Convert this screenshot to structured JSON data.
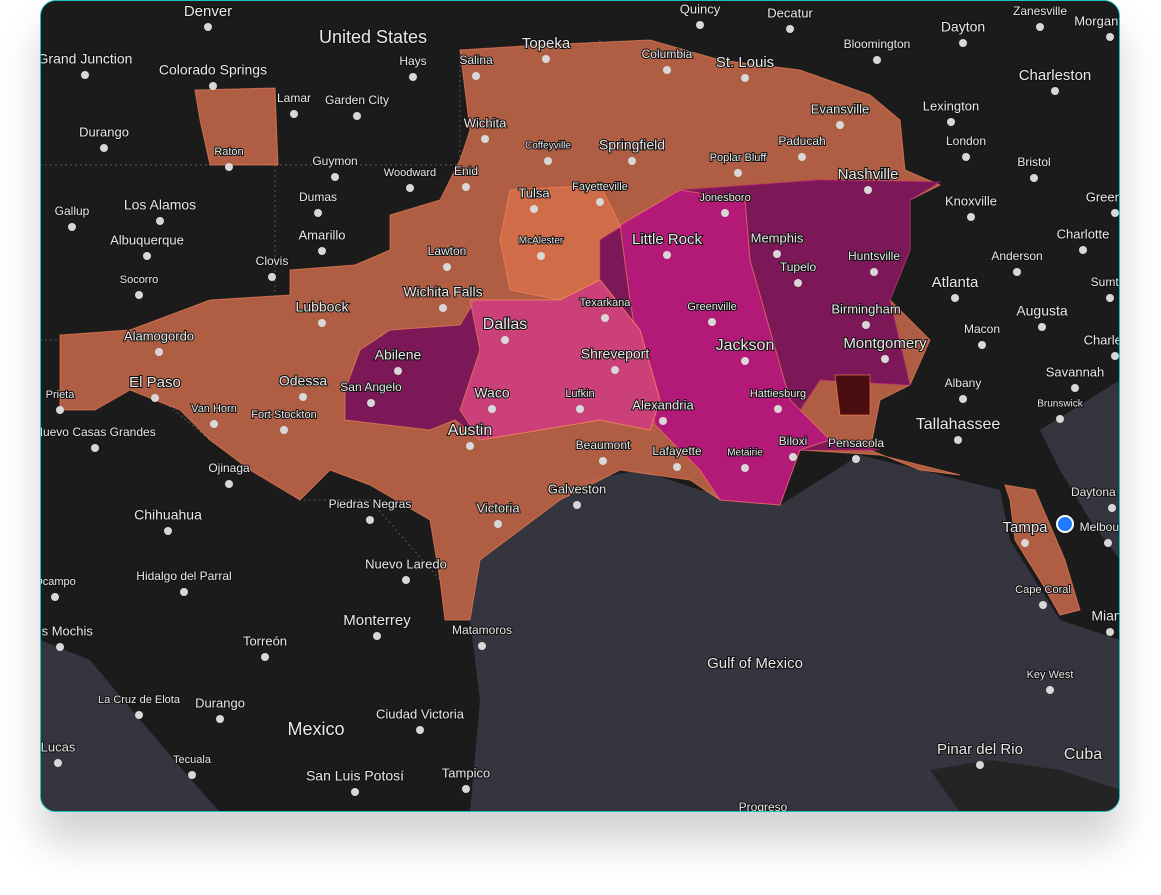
{
  "map": {
    "labels": [
      "Denver",
      "United States",
      "Topeka",
      "Quincy",
      "Decatur",
      "Dayton",
      "Zanesville",
      "Morgantown",
      "Grand Junction",
      "Colorado Springs",
      "Hays",
      "Salina",
      "Columbia",
      "St. Louis",
      "Bloomington",
      "Charleston",
      "Lamar",
      "Garden City",
      "Evansville",
      "Lexington",
      "Durango",
      "Wichita",
      "Raton",
      "Coffeyville",
      "Springfield",
      "Poplar Bluff",
      "Paducah",
      "London",
      "Guymon",
      "Woodward",
      "Enid",
      "Nashville",
      "Bristol",
      "Dumas",
      "Tulsa",
      "Fayetteville",
      "Jonesboro",
      "Knoxville",
      "Greenville",
      "Gallup",
      "Los Alamos",
      "Amarillo",
      "McAlester",
      "Little Rock",
      "Memphis",
      "Charlotte",
      "Albuquerque",
      "Lawton",
      "Clovis",
      "Tupelo",
      "Huntsville",
      "Anderson",
      "Socorro",
      "Atlanta",
      "Sumter",
      "Wichita Falls",
      "Texarkana",
      "Greenville",
      "Birmingham",
      "Lubbock",
      "Augusta",
      "Alamogordo",
      "Dallas",
      "Macon",
      "Charleston",
      "Abilene",
      "Shreveport",
      "Jackson",
      "Montgomery",
      "Savannah",
      "El Paso",
      "Odessa",
      "San Angelo",
      "Hattiesburg",
      "Albany",
      "Prieta",
      "Waco",
      "Lufkin",
      "Brunswick",
      "Van Horn",
      "Fort Stockton",
      "Alexandria",
      "Tallahassee",
      "Nuevo Casas Grandes",
      "Austin",
      "Biloxi",
      "Pensacola",
      "Beaumont",
      "Lafayette",
      "Metairie",
      "Ojinaga",
      "Galveston",
      "Daytona Beach",
      "Piedras Negras",
      "Chihuahua",
      "Victoria",
      "Tampa",
      "Melbourne",
      "Nuevo Laredo",
      "Hidalgo del Parral",
      "Ocampo",
      "Cape Coral",
      "Monterrey",
      "Matamoros",
      "Miami",
      "Los Mochis",
      "Torreón",
      "Gulf of Mexico",
      "Key West",
      "La Cruz de Elota",
      "Durango",
      "Ciudad Victoria",
      "Mexico",
      "Lucas",
      "Pinar del Rio",
      "Cuba",
      "Tecuala",
      "San Luis Potosí",
      "Tampico",
      "Progreso"
    ]
  }
}
